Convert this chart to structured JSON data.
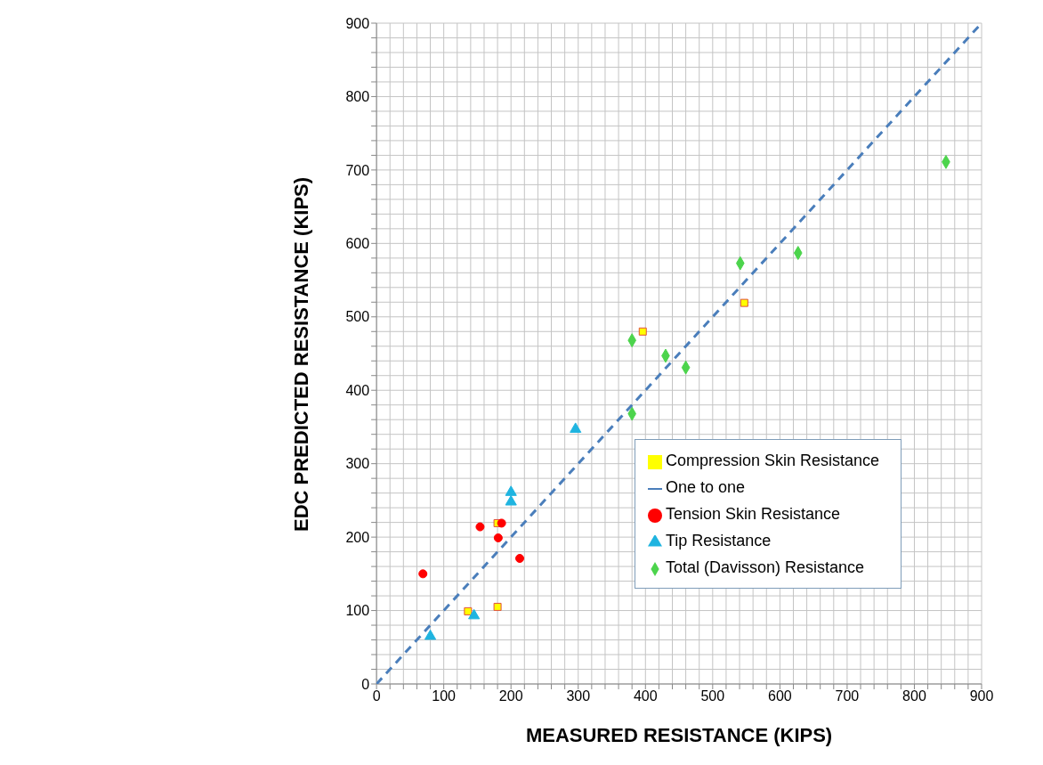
{
  "chart_data": {
    "type": "scatter",
    "xlabel": "MEASURED RESISTANCE (KIPS)",
    "ylabel": "EDC PREDICTED RESISTANCE  (KIPS)",
    "xlim": [
      0,
      900
    ],
    "ylim": [
      0,
      900
    ],
    "xticks": [
      0,
      {
        "value": 20,
        "label": null
      },
      {
        "value": 40,
        "label": null
      },
      {
        "value": 60,
        "label": null
      },
      {
        "value": 80,
        "label": null
      },
      100,
      {
        "value": 120,
        "label": null
      },
      {
        "value": 140,
        "label": null
      },
      {
        "value": 160,
        "label": null
      },
      {
        "value": 180,
        "label": null
      },
      200,
      {
        "value": 220,
        "label": null
      },
      {
        "value": 240,
        "label": null
      },
      {
        "value": 260,
        "label": null
      },
      {
        "value": 280,
        "label": null
      },
      300,
      {
        "value": 320,
        "label": null
      },
      {
        "value": 340,
        "label": null
      },
      {
        "value": 360,
        "label": null
      },
      {
        "value": 380,
        "label": null
      },
      400,
      {
        "value": 420,
        "label": null
      },
      {
        "value": 440,
        "label": null
      },
      {
        "value": 460,
        "label": null
      },
      {
        "value": 480,
        "label": null
      },
      500,
      {
        "value": 520,
        "label": null
      },
      {
        "value": 540,
        "label": null
      },
      {
        "value": 560,
        "label": null
      },
      {
        "value": 580,
        "label": null
      },
      600,
      {
        "value": 620,
        "label": null
      },
      {
        "value": 640,
        "label": null
      },
      {
        "value": 660,
        "label": null
      },
      {
        "value": 680,
        "label": null
      },
      700,
      {
        "value": 720,
        "label": null
      },
      {
        "value": 740,
        "label": null
      },
      {
        "value": 760,
        "label": null
      },
      {
        "value": 780,
        "label": null
      },
      800,
      {
        "value": 820,
        "label": null
      },
      {
        "value": 840,
        "label": null
      },
      {
        "value": 860,
        "label": null
      },
      {
        "value": 880,
        "label": null
      },
      900
    ],
    "yticks": [
      0,
      {
        "value": 20,
        "label": null
      },
      {
        "value": 40,
        "label": null
      },
      {
        "value": 60,
        "label": null
      },
      {
        "value": 80,
        "label": null
      },
      100,
      {
        "value": 120,
        "label": null
      },
      {
        "value": 140,
        "label": null
      },
      {
        "value": 160,
        "label": null
      },
      {
        "value": 180,
        "label": null
      },
      200,
      {
        "value": 220,
        "label": null
      },
      {
        "value": 240,
        "label": null
      },
      {
        "value": 260,
        "label": null
      },
      {
        "value": 280,
        "label": null
      },
      300,
      {
        "value": 320,
        "label": null
      },
      {
        "value": 340,
        "label": null
      },
      {
        "value": 360,
        "label": null
      },
      {
        "value": 380,
        "label": null
      },
      400,
      {
        "value": 420,
        "label": null
      },
      {
        "value": 440,
        "label": null
      },
      {
        "value": 460,
        "label": null
      },
      {
        "value": 480,
        "label": null
      },
      500,
      {
        "value": 520,
        "label": null
      },
      {
        "value": 540,
        "label": null
      },
      {
        "value": 560,
        "label": null
      },
      {
        "value": 580,
        "label": null
      },
      600,
      {
        "value": 620,
        "label": null
      },
      {
        "value": 640,
        "label": null
      },
      {
        "value": 660,
        "label": null
      },
      {
        "value": 680,
        "label": null
      },
      700,
      {
        "value": 720,
        "label": null
      },
      {
        "value": 740,
        "label": null
      },
      {
        "value": 760,
        "label": null
      },
      {
        "value": 780,
        "label": null
      },
      800,
      {
        "value": 820,
        "label": null
      },
      {
        "value": 840,
        "label": null
      },
      {
        "value": 860,
        "label": null
      },
      {
        "value": 880,
        "label": null
      },
      900
    ],
    "grid": true,
    "legend": "bottom right",
    "series": [
      {
        "name": "Total (Davisson) Resistance",
        "color": "#4cd44c",
        "marker": "diamond",
        "x": [
          380,
          380,
          430,
          460,
          541,
          627,
          847
        ],
        "values": [
          468,
          368,
          447,
          431,
          573,
          587,
          711
        ]
      },
      {
        "name": "Compression Skin Resistance",
        "color": "#ffff00",
        "marker": "square",
        "x": [
          396,
          547,
          180,
          136,
          180
        ],
        "values": [
          480,
          519,
          219,
          99,
          105
        ]
      },
      {
        "name": "Tip Resistance",
        "color": "#1fb4e0",
        "marker": "triangle",
        "x": [
          80,
          145,
          200,
          200,
          296
        ],
        "values": [
          65,
          93,
          261,
          248,
          347
        ]
      },
      {
        "name": "Tension Skin Resistance",
        "color": "#ff0000",
        "marker": "circle",
        "x": [
          69,
          154,
          181,
          186,
          213
        ],
        "values": [
          150,
          214,
          199,
          219,
          171
        ]
      },
      {
        "name": "One to one",
        "type": "line",
        "color": "#4a7ebb",
        "marker": "none",
        "line_style": "dashed",
        "x": [
          0,
          900
        ],
        "values": [
          0,
          900
        ]
      }
    ]
  }
}
